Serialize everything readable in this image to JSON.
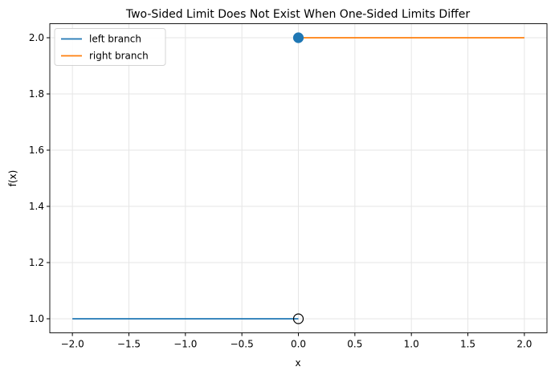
{
  "chart_data": {
    "type": "line",
    "title": "Two-Sided Limit Does Not Exist When One-Sided Limits Differ",
    "xlabel": "x",
    "ylabel": "f(x)",
    "series": [
      {
        "name": "left branch",
        "color": "#1f77b4",
        "x": [
          -2,
          0
        ],
        "values": [
          1,
          1
        ]
      },
      {
        "name": "right branch",
        "color": "#ff7f0e",
        "x": [
          0,
          2
        ],
        "values": [
          2,
          2
        ]
      }
    ],
    "markers": [
      {
        "x": 0,
        "y": 2,
        "fill": "#1f77b4",
        "edge": "#1f77b4"
      },
      {
        "x": 0,
        "y": 1,
        "fill": "none",
        "edge": "#000000"
      }
    ],
    "xlim": [
      -2.2,
      2.2
    ],
    "xticks": [
      {
        "value": -2,
        "label": "−2.0"
      },
      {
        "value": -1.5,
        "label": "−1.5"
      },
      {
        "value": -1,
        "label": "−1.0"
      },
      {
        "value": -0.5,
        "label": "−0.5"
      },
      {
        "value": 0,
        "label": "0.0"
      },
      {
        "value": 0.5,
        "label": "0.5"
      },
      {
        "value": 1,
        "label": "1.0"
      },
      {
        "value": 1.5,
        "label": "1.5"
      },
      {
        "value": 2,
        "label": "2.0"
      }
    ],
    "ylim": [
      0.95,
      2.05
    ],
    "yticks": [
      {
        "value": 1,
        "label": "1.0"
      },
      {
        "value": 1.2,
        "label": "1.2"
      },
      {
        "value": 1.4,
        "label": "1.4"
      },
      {
        "value": 1.6,
        "label": "1.6"
      },
      {
        "value": 1.8,
        "label": "1.8"
      },
      {
        "value": 2,
        "label": "2.0"
      }
    ],
    "grid": true,
    "legend": "upper left"
  }
}
